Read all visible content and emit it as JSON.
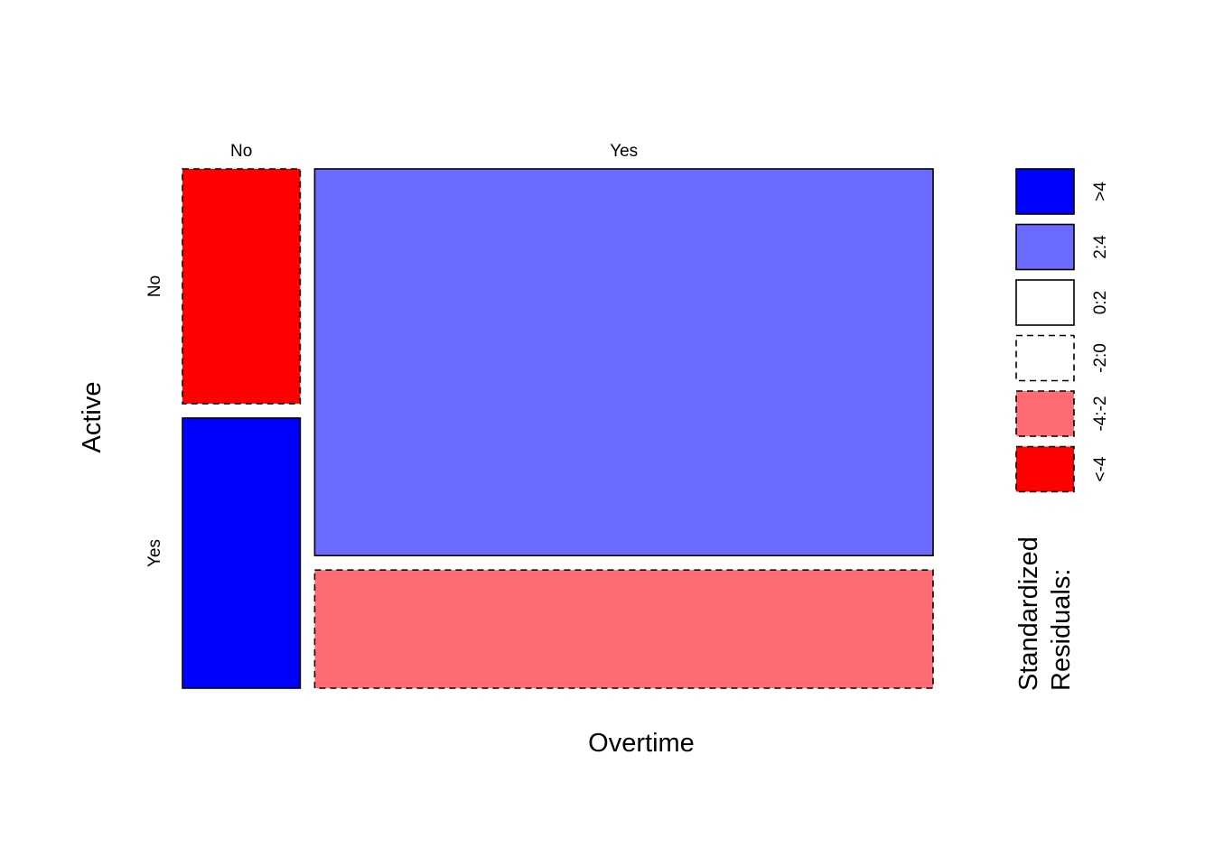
{
  "chart_data": {
    "type": "mosaic",
    "xlabel": "Overtime",
    "ylabel": "Active",
    "x_categories": [
      "No",
      "Yes"
    ],
    "y_categories": [
      "No",
      "Yes"
    ],
    "column_proportions": [
      0.16,
      0.84
    ],
    "cells": [
      {
        "overtime": "No",
        "active": "No",
        "row_share": 0.465,
        "residual_class": "<-4"
      },
      {
        "overtime": "No",
        "active": "Yes",
        "row_share": 0.535,
        "residual_class": ">4"
      },
      {
        "overtime": "Yes",
        "active": "No",
        "row_share": 0.766,
        "residual_class": "2:4"
      },
      {
        "overtime": "Yes",
        "active": "Yes",
        "row_share": 0.234,
        "residual_class": "-4:-2"
      }
    ],
    "legend": {
      "title_lines": [
        "Standardized",
        "Residuals:"
      ],
      "items": [
        {
          "label": ">4",
          "color": "#0000ff",
          "dashed": false
        },
        {
          "label": "2:4",
          "color": "#6b6bff",
          "dashed": false
        },
        {
          "label": "0:2",
          "color": "#ffffff",
          "dashed": false
        },
        {
          "label": "-2:0",
          "color": "#ffffff",
          "dashed": true
        },
        {
          "label": "-4:-2",
          "color": "#ff6b72",
          "dashed": true
        },
        {
          "label": "<-4",
          "color": "#ff0000",
          "dashed": true
        }
      ]
    }
  }
}
